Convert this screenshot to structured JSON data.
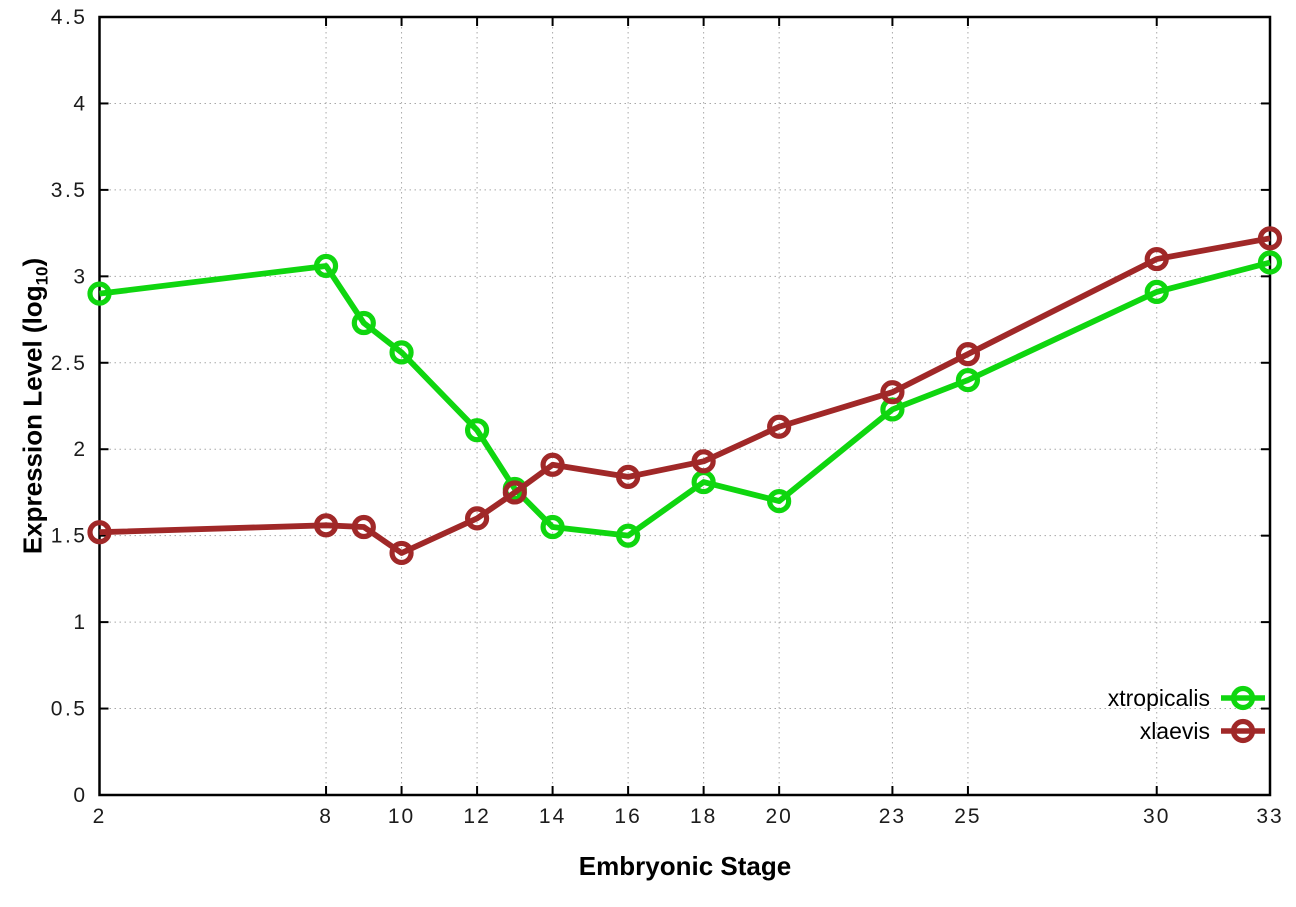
{
  "chart_data": {
    "type": "line",
    "title": "",
    "xlabel": "Embryonic Stage",
    "ylabel": {
      "main": "Expression Level (log",
      "sub": "10",
      "end": ")"
    },
    "xlim": [
      2,
      33
    ],
    "ylim": [
      0,
      4.5
    ],
    "grid": true,
    "legend_position": "bottom-right",
    "x_ticks": [
      2,
      8,
      10,
      12,
      14,
      16,
      18,
      20,
      23,
      25,
      30,
      33
    ],
    "x_tick_labels": [
      "2",
      "8",
      "10",
      "12",
      "14",
      "16",
      "18",
      "20",
      "23",
      "25",
      "30",
      "33"
    ],
    "y_ticks": [
      0,
      0.5,
      1,
      1.5,
      2,
      2.5,
      3,
      3.5,
      4,
      4.5
    ],
    "y_tick_labels": [
      "0",
      "0.5",
      "1",
      "1.5",
      "2",
      "2.5",
      "3",
      "3.5",
      "4",
      "4.5"
    ],
    "series": [
      {
        "name": "xtropicalis",
        "color": "#0fd60f",
        "x": [
          2,
          8,
          9,
          10,
          12,
          13,
          14,
          16,
          18,
          20,
          23,
          25,
          30,
          33
        ],
        "y": [
          2.9,
          3.06,
          2.73,
          2.56,
          2.11,
          1.77,
          1.55,
          1.5,
          1.81,
          1.7,
          2.23,
          2.4,
          2.91,
          3.08
        ]
      },
      {
        "name": "xlaevis",
        "color": "#a02828",
        "x": [
          2,
          8,
          9,
          10,
          12,
          13,
          14,
          16,
          18,
          20,
          23,
          25,
          30,
          33
        ],
        "y": [
          1.52,
          1.56,
          1.55,
          1.4,
          1.6,
          1.75,
          1.91,
          1.84,
          1.93,
          2.13,
          2.33,
          2.55,
          3.1,
          3.22
        ]
      }
    ],
    "colors": {
      "background": "#ffffff",
      "grid": "#a8a8a8",
      "border": "#000000",
      "tick_text": "#1c1c1c"
    }
  }
}
